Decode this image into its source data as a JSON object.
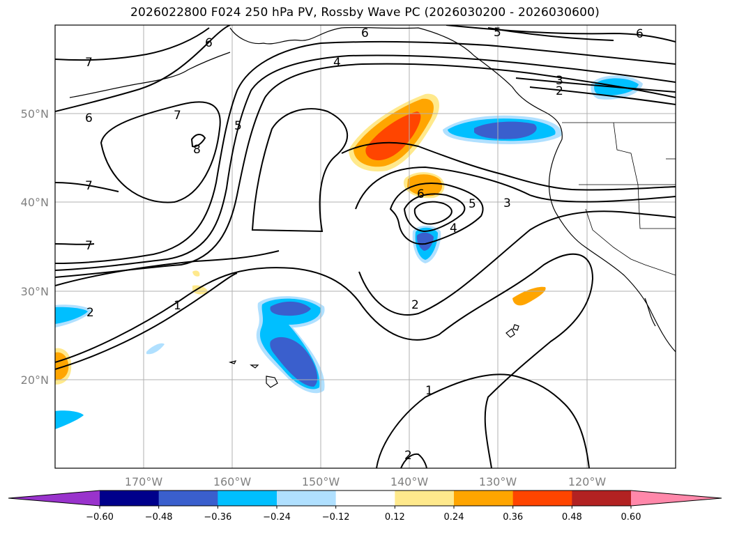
{
  "title": "2026022800 F024 250 hPa PV, Rossby Wave PC (2026030200 - 2026030600)",
  "lat_labels": [
    "50°N",
    "40°N",
    "30°N",
    "20°N"
  ],
  "lon_labels": [
    "170°W",
    "160°W",
    "150°W",
    "140°W",
    "130°W",
    "120°W"
  ],
  "colorbar": {
    "ticks": [
      "−0.60",
      "−0.48",
      "−0.36",
      "−0.24",
      "−0.12",
      "0.12",
      "0.24",
      "0.36",
      "0.48",
      "0.60"
    ],
    "colors": [
      "#9933cc",
      "#00008b",
      "#3a5fcd",
      "#00bfff",
      "#b0e0ff",
      "#ffffff",
      "#ffe98c",
      "#ffa500",
      "#ff4500",
      "#b22222",
      "#ff88aa",
      "#ff88aa"
    ]
  },
  "contour_labels": [
    "6",
    "5",
    "6",
    "6",
    "7",
    "4",
    "3",
    "2",
    "6",
    "7",
    "5",
    "8",
    "7",
    "7",
    "5",
    "3",
    "4",
    "6",
    "2",
    "1",
    "2",
    "1",
    "2"
  ]
}
